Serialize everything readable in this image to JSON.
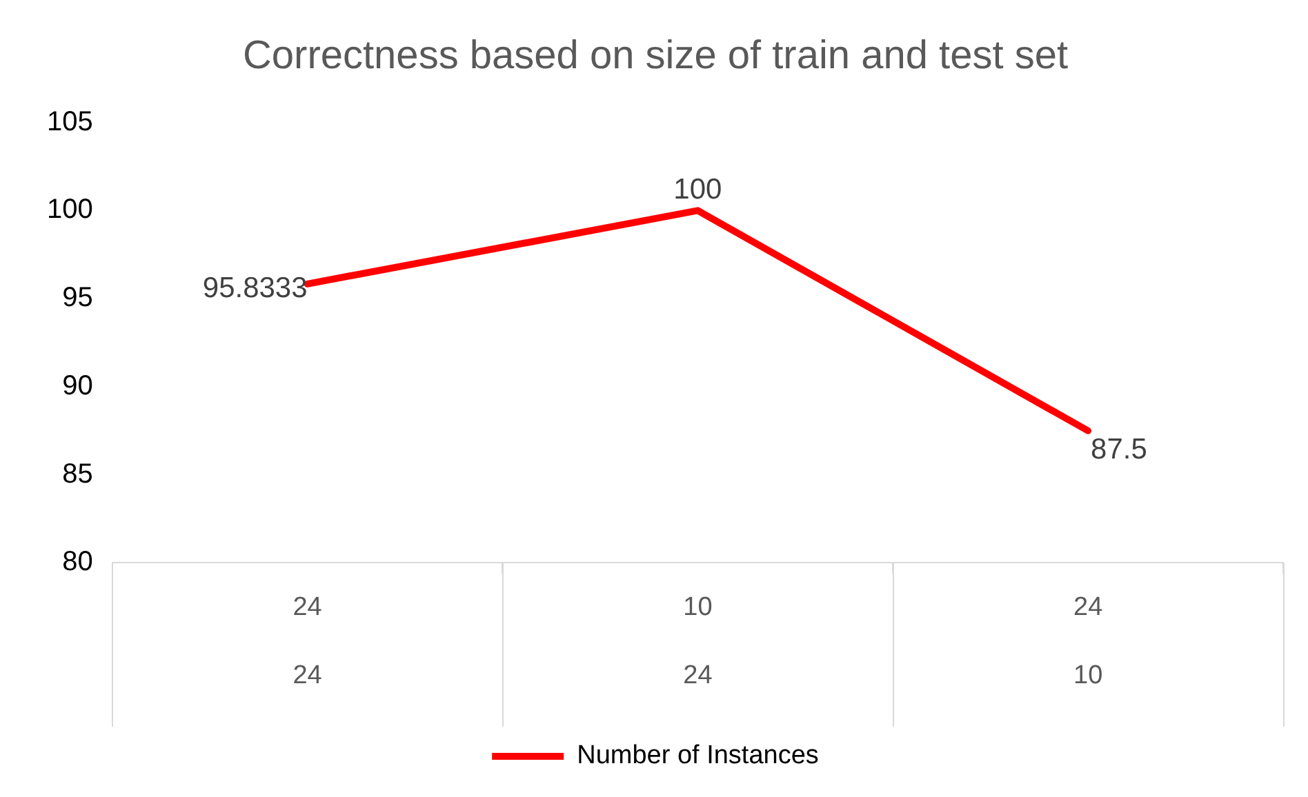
{
  "chart_data": {
    "type": "line",
    "title": "Correctness based on size of train and test set",
    "categories": [
      "24\n24",
      "10\n24",
      "24\n10"
    ],
    "series": [
      {
        "name": "Number of Instances",
        "color": "#ff0000",
        "values": [
          95.8333,
          100,
          87.5
        ]
      }
    ],
    "ylim": [
      80,
      105
    ],
    "yticks": [
      80,
      85,
      90,
      95,
      100,
      105
    ],
    "grid": false,
    "legend": "bottom",
    "marker": "none",
    "data_labels": true
  }
}
